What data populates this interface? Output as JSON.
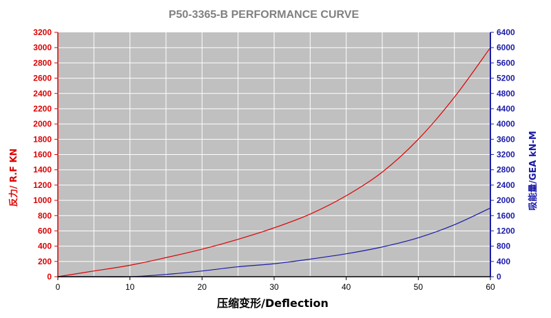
{
  "chart_data": {
    "type": "line",
    "title": "P50-3365-B PERFORMANCE CURVE",
    "xlabel": "压缩变形/Deflection",
    "ylabel_left": "反力/ R.F  KN",
    "ylabel_right": "吸能量/GEA kN-M",
    "xlim": [
      0,
      60
    ],
    "ylim_left": [
      0,
      3200
    ],
    "ylim_right": [
      0,
      6400
    ],
    "x_ticks": [
      0,
      10,
      20,
      30,
      40,
      50,
      60
    ],
    "y_left_ticks": [
      0,
      200,
      400,
      600,
      800,
      1000,
      1200,
      1400,
      1600,
      1800,
      2000,
      2200,
      2400,
      2600,
      2800,
      3000,
      3200
    ],
    "y_right_ticks": [
      0,
      400,
      800,
      1200,
      1600,
      2000,
      2400,
      2800,
      3200,
      3600,
      4000,
      4400,
      4800,
      5200,
      5600,
      6000,
      6400
    ],
    "x_grid_step": 5,
    "grid": true,
    "legend": "none",
    "colors": {
      "title": "#808080",
      "left_axis": "#dd0000",
      "right_axis": "#1a1aa8",
      "plot_bg": "#c0c0c0",
      "grid": "#ffffff",
      "xlabel": "#000000"
    },
    "series": [
      {
        "axis": "left",
        "color": "#dd0000",
        "x": [
          0,
          5,
          10,
          15,
          20,
          25,
          30,
          35,
          40,
          45,
          50,
          55,
          60
        ],
        "y": [
          0,
          75,
          150,
          250,
          360,
          490,
          640,
          820,
          1060,
          1370,
          1800,
          2350,
          3000
        ]
      },
      {
        "axis": "right",
        "color": "#1a1aa8",
        "x": [
          0,
          5,
          10,
          15,
          20,
          25,
          30,
          35,
          40,
          45,
          50,
          55,
          60
        ],
        "y": [
          0,
          0,
          0,
          60,
          150,
          260,
          340,
          460,
          600,
          780,
          1020,
          1360,
          1800
        ]
      }
    ]
  }
}
